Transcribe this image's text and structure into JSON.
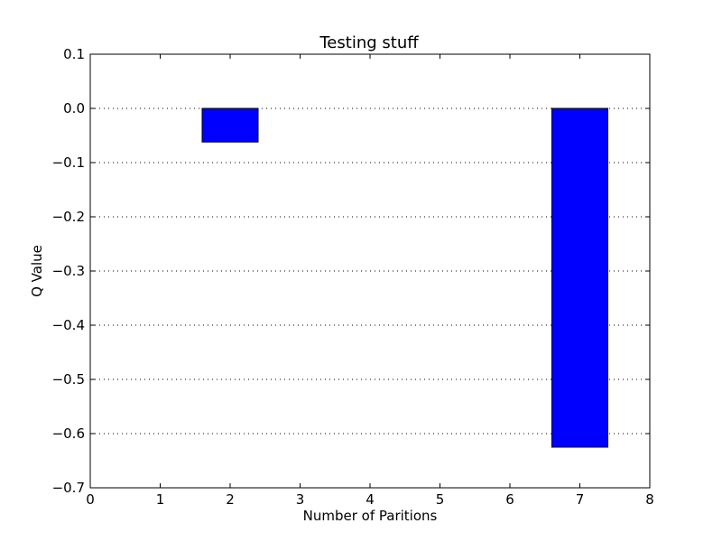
{
  "chart_data": {
    "type": "bar",
    "title": "Testing stuff",
    "xlabel": "Number of Paritions",
    "ylabel": "Q Value",
    "x": [
      1,
      2,
      7
    ],
    "values": [
      0.0,
      -0.062,
      -0.625
    ],
    "bar_width": 0.8,
    "xlim": [
      0,
      8
    ],
    "ylim": [
      -0.7,
      0.1
    ],
    "xticks": [
      "0",
      "1",
      "2",
      "3",
      "4",
      "5",
      "6",
      "7",
      "8"
    ],
    "yticks": [
      "0.1",
      "0.0",
      "−0.1",
      "−0.2",
      "−0.3",
      "−0.4",
      "−0.5",
      "−0.6",
      "−0.7"
    ],
    "ytick_values": [
      0.1,
      0.0,
      -0.1,
      -0.2,
      -0.3,
      -0.4,
      -0.5,
      -0.6,
      -0.7
    ],
    "grid": "y-dotted",
    "colors": {
      "bar": "#0000ff",
      "edge": "#000000"
    }
  }
}
